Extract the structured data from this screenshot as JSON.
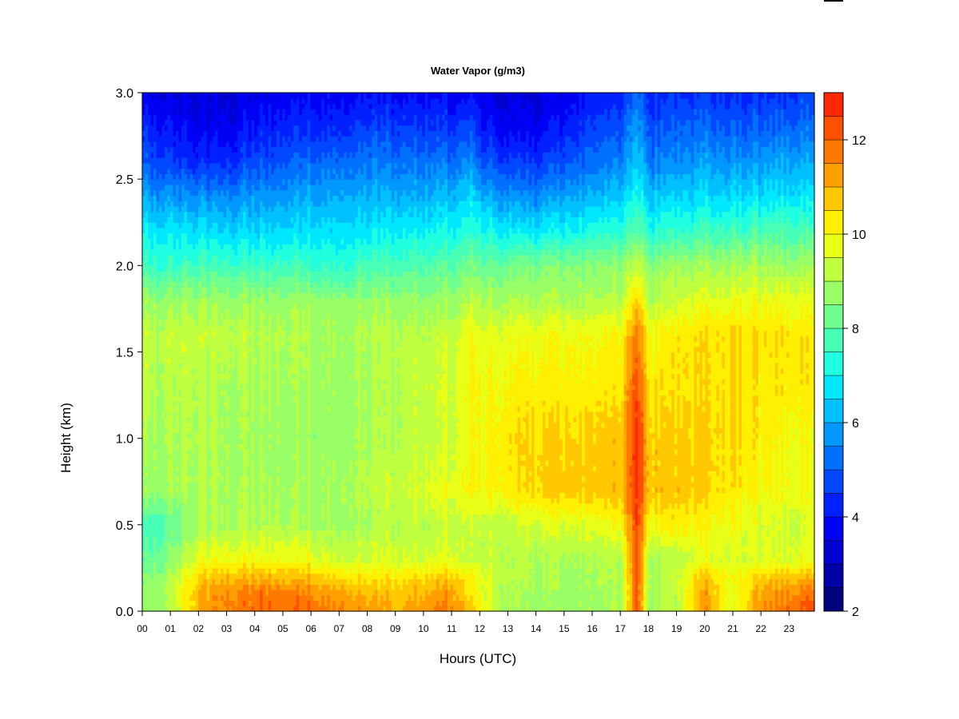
{
  "chart_data": {
    "type": "heatmap",
    "title": "Water Vapor (g/m3)",
    "xlabel": "Hours (UTC)",
    "ylabel": "Height (km)",
    "x_ticks": [
      "00",
      "01",
      "02",
      "03",
      "04",
      "05",
      "06",
      "07",
      "08",
      "09",
      "10",
      "11",
      "12",
      "13",
      "14",
      "15",
      "16",
      "17",
      "18",
      "19",
      "20",
      "21",
      "22",
      "23"
    ],
    "y_ticks": [
      "0.0",
      "0.5",
      "1.0",
      "1.5",
      "2.0",
      "2.5",
      "3.0"
    ],
    "xlim": [
      0,
      23.9
    ],
    "ylim": [
      0,
      3.0
    ],
    "colorbar": {
      "min": 2,
      "max": 13,
      "step": 0.5,
      "tick_labels": [
        "2",
        "4",
        "6",
        "8",
        "10",
        "12"
      ],
      "colors": [
        "#00007F",
        "#0000A8",
        "#0000D0",
        "#0000F5",
        "#0020FF",
        "#0048FF",
        "#0070FF",
        "#0098FF",
        "#00C0FF",
        "#00E8FF",
        "#20FFDF",
        "#48FFB7",
        "#70FF8F",
        "#98FF67",
        "#C0FF3F",
        "#E8FF17",
        "#FFEF00",
        "#FFC800",
        "#FFA000",
        "#FF7800",
        "#FF5000",
        "#FF2800",
        "#E80000",
        "#C00000",
        "#980000",
        "#800000"
      ]
    },
    "hours": [
      0,
      1,
      2,
      3,
      4,
      5,
      6,
      7,
      8,
      9,
      10,
      11,
      11.7,
      12,
      13,
      14,
      15,
      16,
      17,
      17.6,
      18,
      19,
      20,
      21,
      22,
      23,
      23.9
    ],
    "heights": [
      0,
      0.1,
      0.2,
      0.3,
      0.5,
      0.7,
      1.0,
      1.3,
      1.6,
      1.8,
      2.0,
      2.2,
      2.4,
      2.6,
      2.8,
      3.0
    ],
    "values": [
      [
        8.6,
        9.0,
        11.0,
        11.7,
        11.8,
        12.0,
        12.0,
        11.7,
        11.3,
        11.0,
        11.4,
        11.7,
        10.8,
        10.0,
        9.0,
        8.8,
        8.8,
        8.8,
        8.9,
        12.3,
        8.8,
        9.0,
        11.5,
        9.5,
        11.5,
        12.0,
        12.3
      ],
      [
        8.6,
        9.2,
        11.0,
        11.6,
        11.8,
        11.8,
        11.7,
        11.4,
        11.0,
        10.7,
        11.0,
        11.4,
        10.5,
        9.9,
        9.0,
        8.9,
        8.8,
        8.8,
        8.9,
        12.3,
        8.9,
        9.1,
        11.3,
        9.7,
        11.3,
        11.6,
        12.0
      ],
      [
        8.4,
        9.0,
        10.5,
        10.9,
        11.0,
        11.0,
        10.9,
        10.6,
        10.3,
        10.3,
        10.5,
        10.7,
        10.2,
        9.8,
        9.2,
        9.0,
        8.9,
        8.9,
        9.0,
        12.4,
        9.0,
        9.3,
        10.8,
        9.9,
        10.6,
        10.8,
        11.0
      ],
      [
        8.0,
        8.6,
        9.7,
        10.0,
        10.0,
        10.0,
        9.8,
        9.6,
        9.5,
        9.5,
        9.6,
        9.7,
        9.5,
        9.3,
        9.2,
        9.0,
        9.0,
        9.0,
        9.0,
        12.5,
        9.0,
        9.1,
        9.7,
        9.5,
        9.6,
        9.7,
        9.8
      ],
      [
        7.6,
        8.1,
        8.8,
        9.0,
        9.1,
        9.1,
        9.0,
        9.0,
        9.0,
        9.1,
        9.2,
        9.4,
        9.5,
        9.3,
        9.3,
        9.5,
        9.6,
        9.7,
        9.9,
        12.6,
        10.0,
        10.0,
        10.0,
        9.9,
        9.6,
        9.5,
        9.6
      ],
      [
        8.8,
        8.9,
        9.0,
        9.0,
        9.0,
        9.0,
        9.0,
        9.1,
        9.2,
        9.4,
        9.6,
        9.8,
        10.3,
        10.0,
        10.3,
        10.6,
        10.7,
        10.7,
        10.8,
        12.8,
        10.8,
        10.7,
        10.6,
        10.3,
        10.0,
        9.9,
        9.9
      ],
      [
        9.0,
        9.0,
        9.1,
        9.0,
        8.9,
        8.8,
        8.8,
        8.9,
        9.0,
        9.1,
        9.3,
        9.5,
        10.1,
        10.0,
        10.4,
        10.6,
        10.6,
        10.6,
        10.7,
        12.9,
        10.7,
        10.6,
        10.6,
        10.5,
        10.2,
        10.0,
        10.0
      ],
      [
        9.2,
        9.2,
        9.1,
        9.0,
        9.0,
        9.0,
        8.9,
        9.0,
        9.0,
        9.1,
        9.3,
        9.6,
        10.2,
        10.0,
        10.1,
        10.2,
        10.2,
        10.2,
        10.3,
        12.5,
        10.3,
        10.3,
        10.4,
        10.5,
        10.3,
        10.3,
        10.3
      ],
      [
        9.3,
        9.3,
        9.3,
        9.3,
        9.2,
        9.2,
        9.1,
        9.1,
        9.1,
        9.2,
        9.2,
        9.4,
        10.1,
        9.7,
        9.8,
        9.9,
        9.9,
        9.9,
        10.0,
        11.8,
        10.0,
        10.2,
        10.4,
        10.5,
        10.4,
        10.4,
        10.4
      ],
      [
        8.8,
        8.8,
        8.8,
        8.8,
        8.8,
        8.8,
        8.8,
        8.8,
        8.7,
        8.7,
        8.7,
        8.8,
        9.3,
        9.0,
        9.0,
        9.0,
        9.0,
        9.0,
        9.1,
        10.8,
        9.1,
        9.3,
        9.7,
        9.8,
        9.8,
        9.8,
        9.8
      ],
      [
        7.6,
        7.6,
        7.6,
        7.7,
        7.7,
        7.7,
        7.6,
        7.6,
        7.7,
        7.8,
        7.9,
        8.0,
        8.5,
        8.2,
        8.3,
        8.4,
        8.5,
        8.5,
        8.6,
        9.4,
        8.6,
        8.7,
        8.8,
        8.9,
        8.9,
        8.9,
        8.9
      ],
      [
        6.9,
        6.8,
        6.7,
        6.6,
        6.6,
        6.7,
        6.8,
        6.8,
        6.8,
        6.9,
        7.0,
        7.1,
        7.6,
        7.2,
        6.9,
        6.8,
        7.0,
        7.2,
        7.3,
        8.2,
        7.3,
        7.4,
        7.6,
        7.7,
        7.8,
        7.8,
        7.8
      ],
      [
        5.9,
        5.7,
        5.6,
        5.6,
        5.8,
        5.9,
        6.0,
        6.1,
        6.1,
        6.1,
        6.1,
        6.2,
        6.8,
        6.2,
        5.7,
        5.6,
        5.9,
        6.1,
        6.3,
        7.3,
        6.3,
        6.4,
        6.6,
        6.6,
        6.7,
        6.8,
        6.8
      ],
      [
        5.0,
        4.6,
        4.3,
        4.4,
        4.8,
        5.0,
        5.2,
        5.3,
        5.3,
        5.3,
        5.3,
        5.3,
        5.8,
        5.0,
        4.6,
        4.5,
        4.8,
        5.2,
        5.4,
        6.6,
        5.4,
        5.5,
        5.8,
        5.7,
        5.8,
        6.0,
        6.0
      ],
      [
        4.3,
        4.0,
        3.6,
        3.7,
        4.1,
        4.3,
        4.4,
        4.5,
        4.6,
        4.6,
        4.6,
        4.5,
        4.9,
        4.2,
        3.8,
        3.7,
        4.1,
        4.6,
        4.8,
        6.0,
        4.8,
        4.9,
        5.1,
        5.0,
        5.0,
        5.2,
        5.3
      ],
      [
        3.7,
        3.5,
        3.3,
        3.4,
        3.6,
        3.8,
        3.9,
        3.9,
        3.9,
        3.9,
        3.9,
        3.8,
        4.0,
        3.6,
        3.4,
        3.4,
        3.7,
        4.0,
        4.2,
        5.4,
        4.2,
        4.3,
        4.4,
        4.4,
        4.4,
        4.5,
        4.6
      ]
    ]
  }
}
